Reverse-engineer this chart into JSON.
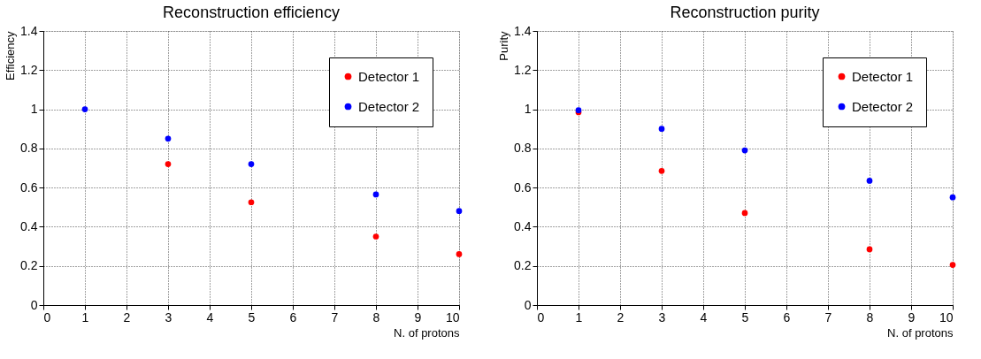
{
  "chart_data": [
    {
      "type": "scatter",
      "title": "Reconstruction efficiency",
      "xlabel": "N. of protons",
      "ylabel": "Efficiency",
      "x": [
        1,
        3,
        5,
        8,
        10
      ],
      "series": [
        {
          "name": "Detector 1",
          "color": "#ff0000",
          "values": [
            null,
            0.72,
            0.525,
            0.35,
            0.26
          ]
        },
        {
          "name": "Detector 2",
          "color": "#0000ff",
          "values": [
            1.0,
            0.85,
            0.72,
            0.565,
            0.48
          ]
        }
      ],
      "xlim": [
        0,
        10
      ],
      "xticks": [
        0,
        1,
        2,
        3,
        4,
        5,
        6,
        7,
        8,
        9,
        10
      ],
      "ylim": [
        0,
        1.4
      ],
      "yticks": [
        0,
        0.2,
        0.4,
        0.6,
        0.8,
        1,
        1.2,
        1.4
      ],
      "grid": true,
      "legend": "top right",
      "marker": "circle"
    },
    {
      "type": "scatter",
      "title": "Reconstruction purity",
      "xlabel": "N. of protons",
      "ylabel": "Purity",
      "x": [
        1,
        3,
        5,
        8,
        10
      ],
      "series": [
        {
          "name": "Detector 1",
          "color": "#ff0000",
          "values": [
            0.985,
            0.685,
            0.47,
            0.285,
            0.205
          ]
        },
        {
          "name": "Detector 2",
          "color": "#0000ff",
          "values": [
            0.995,
            0.9,
            0.79,
            0.635,
            0.55
          ]
        }
      ],
      "xlim": [
        0,
        10
      ],
      "xticks": [
        0,
        1,
        2,
        3,
        4,
        5,
        6,
        7,
        8,
        9,
        10
      ],
      "ylim": [
        0,
        1.4
      ],
      "yticks": [
        0,
        0.2,
        0.4,
        0.6,
        0.8,
        1,
        1.2,
        1.4
      ],
      "grid": true,
      "legend": "top right",
      "marker": "circle"
    }
  ]
}
